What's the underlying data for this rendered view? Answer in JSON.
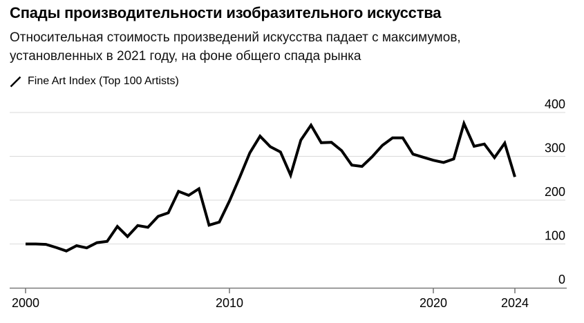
{
  "header": {
    "title": "Спады производительности изобразительного искусства",
    "subtitle_line1": "Относительная стоимость произведений искусства падает с максимумов,",
    "subtitle_line2": "установленных в 2021 году, на фоне общего спада рынка"
  },
  "legend": {
    "marker_icon": "diagonal-line-icon",
    "series_label": "Fine Art Index (Top 100 Artists)"
  },
  "colors": {
    "line": "#000000",
    "grid": "#dadada",
    "axis": "#7a7a7a",
    "text": "#000000"
  },
  "chart_data": {
    "type": "line",
    "title": "Спады производительности изобразительного искусства",
    "subtitle": "Относительная стоимость произведений искусства падает с максимумов, установленных в 2021 году, на фоне общего спада рынка",
    "xlabel": "",
    "ylabel": "",
    "grid": "horizontal",
    "legend_position": "top-left",
    "xticks": [
      2000,
      2010,
      2020,
      2024
    ],
    "yticks": [
      0,
      100,
      200,
      300,
      400
    ],
    "xlim": [
      1999.2,
      2026.5
    ],
    "ylim": [
      0,
      430
    ],
    "series": [
      {
        "name": "Fine Art Index (Top 100 Artists)",
        "x": [
          2000,
          2000.5,
          2001,
          2001.5,
          2002,
          2002.5,
          2003,
          2003.5,
          2004,
          2004.5,
          2005,
          2005.5,
          2006,
          2006.5,
          2007,
          2007.5,
          2008,
          2008.5,
          2009,
          2009.5,
          2010,
          2010.5,
          2011,
          2011.5,
          2012,
          2012.5,
          2013,
          2013.5,
          2014,
          2014.5,
          2015,
          2015.5,
          2016,
          2016.5,
          2017,
          2017.5,
          2018,
          2018.5,
          2019,
          2019.5,
          2020,
          2020.5,
          2021,
          2021.5,
          2022,
          2022.5,
          2023,
          2023.5,
          2024
        ],
        "values": [
          100,
          100,
          99,
          92,
          84,
          96,
          91,
          103,
          106,
          140,
          117,
          142,
          138,
          163,
          171,
          220,
          211,
          226,
          143,
          150,
          198,
          252,
          308,
          346,
          322,
          310,
          257,
          337,
          371,
          331,
          332,
          313,
          280,
          277,
          299,
          325,
          342,
          342,
          305,
          298,
          291,
          286,
          294,
          375,
          323,
          328,
          297,
          330,
          253
        ]
      }
    ]
  }
}
